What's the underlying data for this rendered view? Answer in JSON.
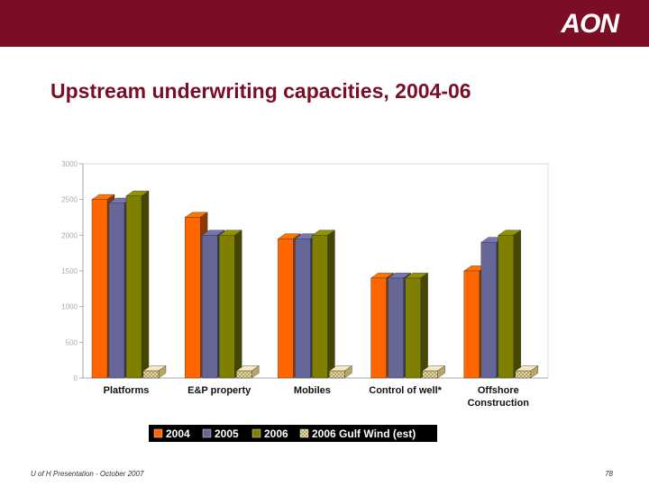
{
  "header": {
    "logo_text": "AON"
  },
  "slide_title": "Upstream underwriting capacities, 2004-06",
  "footer": {
    "left_text": "U of H Presentation - October 2007",
    "page_number": "78"
  },
  "chart_data": {
    "type": "bar",
    "title": "",
    "xlabel": "",
    "ylabel": "",
    "ylim": [
      0,
      3000
    ],
    "yticks": [
      "0",
      "500",
      "1000",
      "1500",
      "2000",
      "2500",
      "3000"
    ],
    "categories": [
      "Platforms",
      "E&P property",
      "Mobiles",
      "Control of well*",
      "Offshore Construction"
    ],
    "category_lines": [
      [
        "Platforms"
      ],
      [
        "E&P property"
      ],
      [
        "Mobiles"
      ],
      [
        "Control of well*"
      ],
      [
        "Offshore",
        "Construction"
      ]
    ],
    "series": [
      {
        "name": "2004",
        "values": [
          2500,
          2250,
          1950,
          1400,
          1500
        ],
        "color": "#ff6600"
      },
      {
        "name": "2005",
        "values": [
          2450,
          2000,
          1950,
          1400,
          1900
        ],
        "color": "#666699"
      },
      {
        "name": "2006",
        "values": [
          2550,
          2000,
          2000,
          1400,
          2000
        ],
        "color": "#808000"
      },
      {
        "name": "2006 Gulf Wind (est)",
        "values": [
          100,
          100,
          100,
          100,
          100
        ],
        "color": "#e8d59a"
      }
    ]
  }
}
